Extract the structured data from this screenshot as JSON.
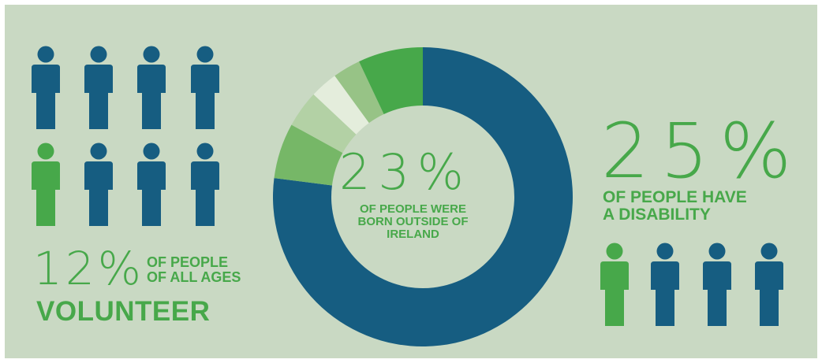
{
  "colors": {
    "background": "#c9d9c3",
    "blue": "#165d81",
    "green": "#47a84a"
  },
  "volunteer": {
    "percent": "12%",
    "label_lines": [
      "OF PEOPLE",
      "OF ALL AGES"
    ],
    "highlight": "VOLUNTEER",
    "figures": [
      "blue",
      "blue",
      "blue",
      "blue",
      "green",
      "blue",
      "blue",
      "blue"
    ],
    "icon": "person-icon"
  },
  "born_outside": {
    "percent": "23%",
    "label_lines": [
      "OF PEOPLE WERE",
      "BORN OUTSIDE OF",
      "IRELAND"
    ],
    "donut": {
      "type": "pie",
      "main_share": 0.77,
      "main_color": "#165d81",
      "segments": [
        {
          "share": 0.06,
          "color": "#76b767"
        },
        {
          "share": 0.04,
          "color": "#b3d1a5"
        },
        {
          "share": 0.03,
          "color": "#e4eddc"
        },
        {
          "share": 0.03,
          "color": "#97c386"
        },
        {
          "share": 0.07,
          "color": "#47a84a"
        }
      ]
    }
  },
  "disability": {
    "percent": "25%",
    "label_lines": [
      "OF PEOPLE HAVE",
      "A DISABILITY"
    ],
    "figures": [
      "green",
      "blue",
      "blue",
      "blue"
    ],
    "icon": "person-icon"
  }
}
